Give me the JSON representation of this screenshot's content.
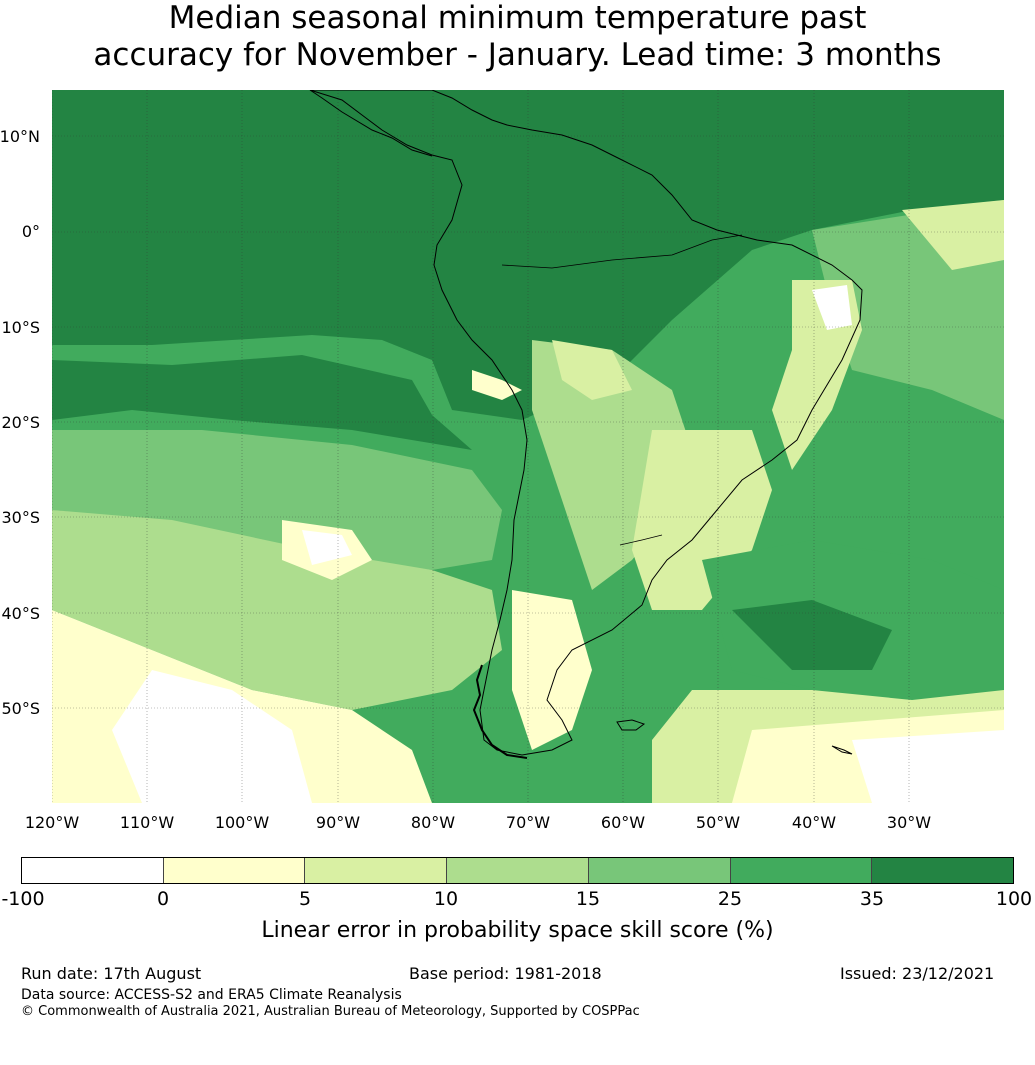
{
  "title": {
    "line1": "Median seasonal minimum temperature past",
    "line2": "accuracy for November - January. Lead time: 3 months"
  },
  "lat_labels": [
    "10°N",
    "0°",
    "10°S",
    "20°S",
    "30°S",
    "40°S",
    "50°S"
  ],
  "lon_labels": [
    "120°W",
    "110°W",
    "100°W",
    "90°W",
    "80°W",
    "70°W",
    "60°W",
    "50°W",
    "40°W",
    "30°W"
  ],
  "colorbar": {
    "ticks": [
      "-100",
      "0",
      "5",
      "10",
      "15",
      "25",
      "35",
      "100"
    ],
    "colors": [
      "#ffffff",
      "#ffffcc",
      "#d9f0a3",
      "#addd8e",
      "#78c679",
      "#41ab5d",
      "#238443"
    ],
    "label": "Linear error in probability space skill score (%)"
  },
  "footer": {
    "run_date": "Run date: 17th August",
    "base_period": "Base period: 1981-2018",
    "issued": "Issued: 23/12/2021",
    "data_source": "Data source: ACCESS-S2 and ERA5 Climate Reanalysis",
    "copyright": "© Commonwealth of Australia 2021, Australian Bureau of Meteorology, Supported by COSPPac"
  }
}
